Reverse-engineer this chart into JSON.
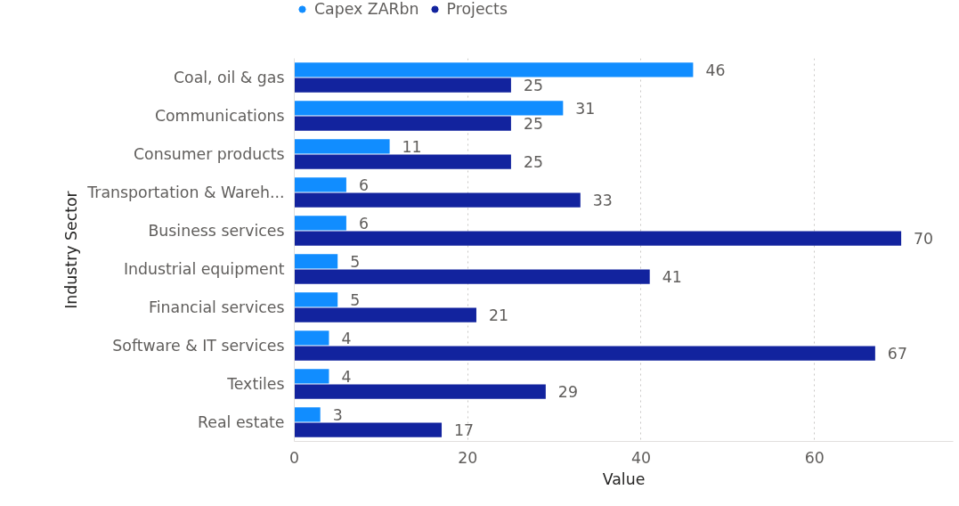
{
  "chart_data": {
    "type": "bar",
    "orientation": "horizontal",
    "xlabel": "Value",
    "ylabel": "Industry Sector",
    "categories": [
      "Coal, oil & gas",
      "Communications",
      "Consumer products",
      "Transportation & Wareh...",
      "Business services",
      "Industrial equipment",
      "Financial services",
      "Software & IT services",
      "Textiles",
      "Real estate"
    ],
    "series": [
      {
        "name": "Capex ZARbn",
        "color": "#118dff",
        "values": [
          46,
          31,
          11,
          6,
          6,
          5,
          5,
          4,
          4,
          3
        ]
      },
      {
        "name": "Projects",
        "color": "#12239e",
        "values": [
          25,
          25,
          25,
          33,
          70,
          41,
          21,
          67,
          29,
          17
        ]
      }
    ],
    "xlim": [
      0,
      76
    ],
    "xticks": [
      0,
      20,
      40,
      60
    ],
    "grid": "x",
    "legend": "top left",
    "data_labels": true
  }
}
